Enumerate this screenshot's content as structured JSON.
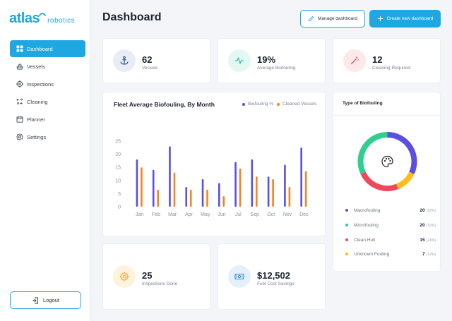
{
  "brand": {
    "main": "atlas",
    "sub": "robotics",
    "color": "#1ea7e1"
  },
  "sidebar": {
    "items": [
      {
        "label": "Dashboard",
        "icon": "grid-icon",
        "active": true
      },
      {
        "label": "Vessels",
        "icon": "ship-icon"
      },
      {
        "label": "Inspections",
        "icon": "crosshair-icon"
      },
      {
        "label": "Cleaning",
        "icon": "sparkle-icon"
      },
      {
        "label": "Planner",
        "icon": "calendar-icon"
      },
      {
        "label": "Settings",
        "icon": "gear-icon"
      }
    ],
    "logout": "Logout"
  },
  "header": {
    "title": "Dashboard",
    "manage_label": "Manage dashboard",
    "create_label": "Create new dashboard"
  },
  "stats": {
    "vessels": {
      "value": "62",
      "label": "Vessels",
      "icon": "anchor-icon"
    },
    "biofouling": {
      "value": "19%",
      "label": "Average Biofouling",
      "icon": "pulse-icon"
    },
    "cleaning": {
      "value": "12",
      "label": "Cleaning Required",
      "icon": "magic-wand-icon"
    },
    "inspections": {
      "value": "25",
      "label": "Inspections Done",
      "icon": "target-icon"
    },
    "savings": {
      "value": "$12,502",
      "label": "Fuel Cost Savings",
      "icon": "banknote-icon"
    }
  },
  "chart_data": {
    "type": "bar",
    "title": "Fleet Average Biofouling, By Month",
    "categories": [
      "Jan",
      "Feb",
      "Mar",
      "Apr",
      "May",
      "Jun",
      "Jul",
      "Sep",
      "Oct",
      "Nov",
      "Dec"
    ],
    "series": [
      {
        "name": "Biofouling %",
        "color": "#5b4fe0",
        "values": [
          18,
          14,
          23,
          7.5,
          10.5,
          9,
          17,
          18,
          11.5,
          16,
          22.5
        ]
      },
      {
        "name": "Cleaned Vessels",
        "color": "#f5841f",
        "values": [
          15,
          6.5,
          13,
          6.5,
          6.5,
          4,
          14.5,
          11.5,
          10.5,
          7.5,
          13.5
        ]
      }
    ],
    "yticks": [
      0,
      5,
      10,
      15,
      20,
      25
    ],
    "ylim": [
      0,
      25
    ],
    "xlabel": "",
    "ylabel": "",
    "legend_position": "top-right",
    "grid": false
  },
  "donut": {
    "title": "Type of Biofouling",
    "center_icon": "palette-icon",
    "items": [
      {
        "label": "Macrofouling",
        "count": "20",
        "pct": "(32%)",
        "value": 32,
        "color": "#5b4fe0"
      },
      {
        "label": "Microfouling",
        "count": "20",
        "pct": "(32%)",
        "value": 32,
        "color": "#2fcf8f"
      },
      {
        "label": "Clean Hull",
        "count": "15",
        "pct": "(24%)",
        "value": 24,
        "color": "#f0475b"
      },
      {
        "label": "Unknown Fouling",
        "count": "7",
        "pct": "(12%)",
        "value": 12,
        "color": "#fbbd1a"
      }
    ],
    "arc_order": [
      "Macrofouling",
      "Unknown Fouling",
      "Clean Hull",
      "Microfouling"
    ]
  }
}
